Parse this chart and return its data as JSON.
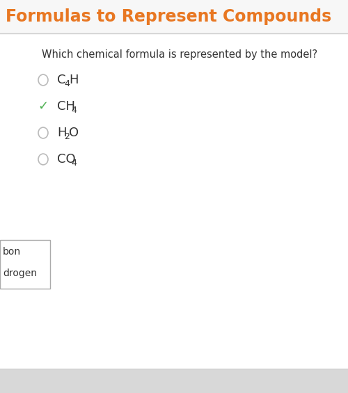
{
  "title": "Formulas to Represent Compounds",
  "title_color": "#E87722",
  "body_bg_color": "#FFFFFF",
  "header_bg_color": "#F0F0F0",
  "question": "Which chemical formula is represented by the model?",
  "question_color": "#333333",
  "question_fontsize": 10.5,
  "title_fontsize": 17,
  "options": [
    {
      "label_parts": [
        [
          "C",
          false
        ],
        [
          "4",
          true
        ],
        [
          "H",
          false
        ]
      ],
      "selected": false
    },
    {
      "label_parts": [
        [
          "CH",
          false
        ],
        [
          "4",
          true
        ]
      ],
      "selected": true
    },
    {
      "label_parts": [
        [
          "H",
          false
        ],
        [
          "2",
          true
        ],
        [
          "O",
          false
        ]
      ],
      "selected": false
    },
    {
      "label_parts": [
        [
          "CO",
          false
        ],
        [
          "4",
          true
        ]
      ],
      "selected": false
    }
  ],
  "radio_color_unselected": "#BBBBBB",
  "check_color": "#4CAF50",
  "option_fontsize": 13,
  "legend_items": [
    "bon",
    "drogen"
  ],
  "legend_box_color": "#FFFFFF",
  "legend_border_color": "#AAAAAA",
  "footer_bg_color": "#D8D8D8",
  "separator_color": "#CCCCCC"
}
